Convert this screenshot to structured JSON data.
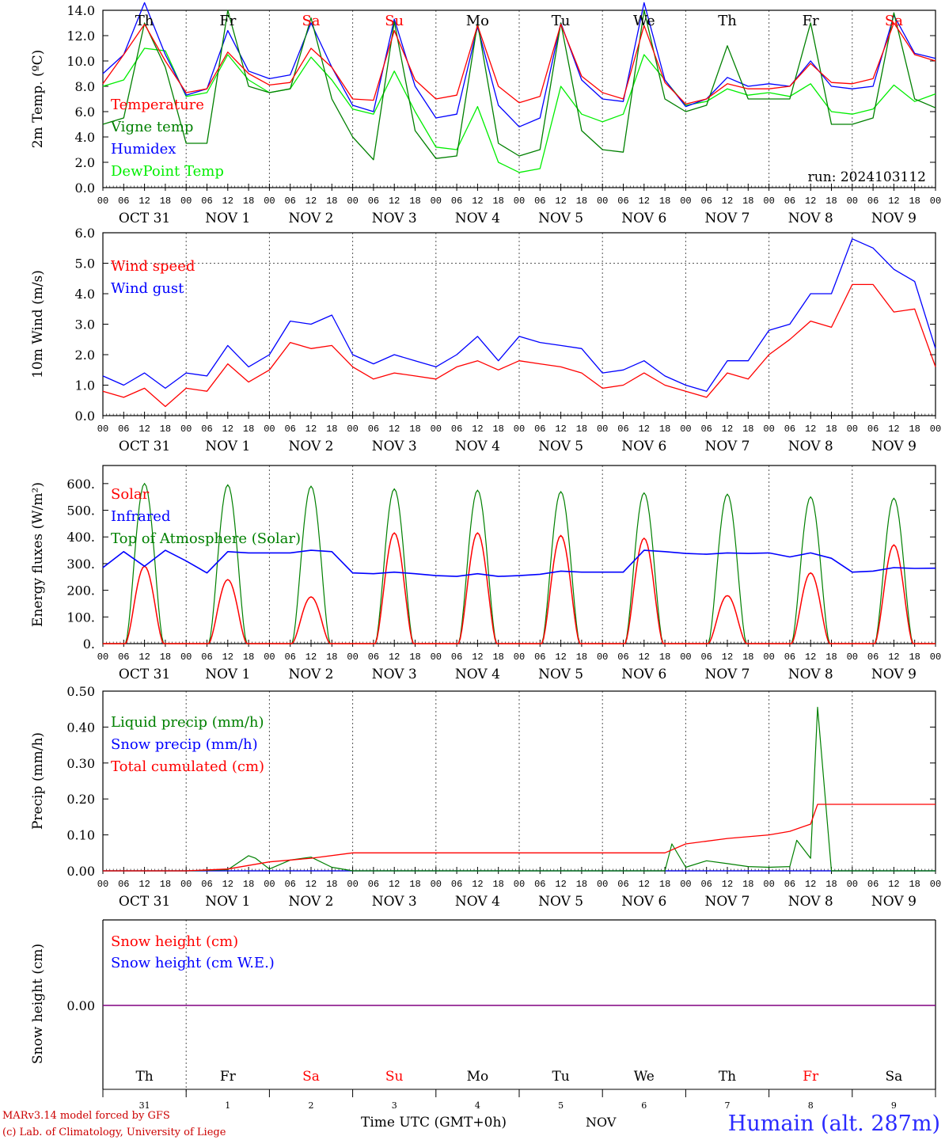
{
  "colors": {
    "red": "#ff0000",
    "green": "#008000",
    "lime": "#00ee00",
    "blue": "#0000ff",
    "purple": "#800080",
    "axis": "#000000",
    "grid": "#555555",
    "station": "#2a2aff",
    "credit": "#cc0000"
  },
  "days": {
    "weekday_labels": [
      "Th",
      "Fr",
      "Sa",
      "Su",
      "Mo",
      "Tu",
      "We",
      "Th",
      "Fr",
      "Sa"
    ],
    "weekend_flags": [
      false,
      false,
      true,
      true,
      false,
      false,
      false,
      false,
      true,
      false
    ],
    "top_weekend_flags": [
      false,
      false,
      true,
      true,
      false,
      false,
      false,
      false,
      false,
      true
    ],
    "month_labels": [
      "OCT 31",
      "NOV 1",
      "NOV 2",
      "NOV 3",
      "NOV 4",
      "NOV 5",
      "NOV 6",
      "NOV 7",
      "NOV 8",
      "NOV 9"
    ],
    "day_numbers": [
      "31",
      "1",
      "2",
      "3",
      "4",
      "5",
      "6",
      "7",
      "8",
      "9"
    ],
    "hour_ticks": [
      "00",
      "06",
      "12",
      "18"
    ],
    "hour_end": "00"
  },
  "footer": {
    "credit_line1": "MARv3.14 model forced by GFS",
    "credit_line2": "(c) Lab. of Climatology, University of Liege",
    "time_axis": "Time UTC (GMT+0h)",
    "month": "NOV",
    "station": "Humain (alt. 287m)"
  },
  "chart_data": [
    {
      "type": "line",
      "ylabel": "2m Temp. (ºC)",
      "ylim": [
        0,
        14
      ],
      "yticks": [
        "0.0",
        "2.0",
        "4.0",
        "6.0",
        "8.0",
        "10.0",
        "12.0",
        "14.0"
      ],
      "grid": "vertical dotted lines at 00 UTC",
      "run_label": "run: 2024103112",
      "x_start": "2024-10-31 00:00 UTC",
      "x_end": "2024-11-10 00:00 UTC",
      "series": [
        {
          "name": "Temperature",
          "color": "red",
          "x": [
            0,
            6,
            12,
            18,
            24,
            30,
            36,
            42,
            48,
            54,
            60,
            66,
            72,
            78,
            84,
            90,
            96,
            102,
            108,
            114,
            120,
            126,
            132,
            138,
            144,
            150,
            156,
            162,
            168,
            174,
            180,
            186,
            192,
            198,
            204,
            210,
            216,
            222,
            228,
            234,
            240
          ],
          "y": [
            8.2,
            10.5,
            12.9,
            10.0,
            7.5,
            7.8,
            10.7,
            9.0,
            8.1,
            8.3,
            11.0,
            9.5,
            7.0,
            6.9,
            12.4,
            8.5,
            7.0,
            7.3,
            12.8,
            8.0,
            6.7,
            7.2,
            12.9,
            8.8,
            7.5,
            7.0,
            12.8,
            8.3,
            6.6,
            7.0,
            8.2,
            7.8,
            7.8,
            8.0,
            9.8,
            8.3,
            8.2,
            8.6,
            13.0,
            10.5,
            10.0
          ]
        },
        {
          "name": "Vigne temp",
          "color": "green",
          "x": [
            0,
            6,
            12,
            18,
            24,
            30,
            36,
            42,
            48,
            54,
            60,
            66,
            72,
            78,
            84,
            90,
            96,
            102,
            108,
            114,
            120,
            126,
            132,
            138,
            144,
            150,
            156,
            162,
            168,
            174,
            180,
            186,
            192,
            198,
            204,
            210,
            216,
            222,
            228,
            234,
            240
          ],
          "y": [
            5.0,
            5.5,
            13.0,
            9.5,
            3.5,
            3.5,
            14.0,
            8.0,
            7.5,
            7.8,
            13.4,
            7.0,
            4.0,
            2.2,
            13.1,
            4.5,
            2.3,
            2.5,
            13.0,
            3.5,
            2.5,
            3.0,
            13.0,
            4.5,
            3.0,
            2.8,
            14.0,
            7.0,
            6.0,
            6.5,
            11.2,
            7.0,
            7.0,
            7.0,
            13.0,
            5.0,
            5.0,
            5.5,
            13.8,
            7.0,
            6.3
          ]
        },
        {
          "name": "Humidex",
          "color": "blue",
          "x": [
            0,
            6,
            12,
            18,
            24,
            30,
            36,
            42,
            48,
            54,
            60,
            66,
            72,
            78,
            84,
            90,
            96,
            102,
            108,
            114,
            120,
            126,
            132,
            138,
            144,
            150,
            156,
            162,
            168,
            174,
            180,
            186,
            192,
            198,
            204,
            210,
            216,
            222,
            228,
            234,
            240
          ],
          "y": [
            9.0,
            10.5,
            14.6,
            10.5,
            7.3,
            7.8,
            12.4,
            9.2,
            8.6,
            8.9,
            13.0,
            9.5,
            6.5,
            6.0,
            13.3,
            8.0,
            5.5,
            5.8,
            12.7,
            6.5,
            4.8,
            5.5,
            13.0,
            8.5,
            7.0,
            6.8,
            14.6,
            8.5,
            6.4,
            7.0,
            8.7,
            8.0,
            8.2,
            8.0,
            10.0,
            8.0,
            7.8,
            8.0,
            13.6,
            10.6,
            10.2
          ]
        },
        {
          "name": "DewPoint Temp",
          "color": "lime",
          "x": [
            0,
            6,
            12,
            18,
            24,
            30,
            36,
            42,
            48,
            54,
            60,
            66,
            72,
            78,
            84,
            90,
            96,
            102,
            108,
            114,
            120,
            126,
            132,
            138,
            144,
            150,
            156,
            162,
            168,
            174,
            180,
            186,
            192,
            198,
            204,
            210,
            216,
            222,
            228,
            234,
            240
          ],
          "y": [
            8.0,
            8.5,
            11.0,
            10.8,
            7.2,
            7.5,
            10.5,
            8.5,
            7.5,
            7.8,
            10.3,
            8.5,
            6.2,
            5.8,
            9.2,
            6.0,
            3.2,
            3.0,
            6.4,
            2.0,
            1.2,
            1.5,
            8.0,
            5.8,
            5.2,
            5.8,
            10.5,
            8.5,
            6.5,
            6.8,
            7.8,
            7.3,
            7.5,
            7.2,
            8.2,
            6.0,
            5.8,
            6.2,
            8.1,
            6.8,
            7.4
          ]
        }
      ]
    },
    {
      "type": "line",
      "ylabel": "10m Wind (m/s)",
      "ylim": [
        0,
        6
      ],
      "yticks": [
        "0.0",
        "1.0",
        "2.0",
        "3.0",
        "4.0",
        "5.0",
        "6.0"
      ],
      "reference_line": 5.0,
      "grid": "vertical dotted lines at 00 UTC",
      "x_start": "2024-10-31 00:00 UTC",
      "x_end": "2024-11-10 00:00 UTC",
      "series": [
        {
          "name": "Wind speed",
          "color": "red",
          "x": [
            0,
            6,
            12,
            18,
            24,
            30,
            36,
            42,
            48,
            54,
            60,
            66,
            72,
            78,
            84,
            90,
            96,
            102,
            108,
            114,
            120,
            126,
            132,
            138,
            144,
            150,
            156,
            162,
            168,
            174,
            180,
            186,
            192,
            198,
            204,
            210,
            216,
            222,
            228,
            234,
            240
          ],
          "y": [
            0.8,
            0.6,
            0.9,
            0.3,
            0.9,
            0.8,
            1.7,
            1.1,
            1.5,
            2.4,
            2.2,
            2.3,
            1.6,
            1.2,
            1.4,
            1.3,
            1.2,
            1.6,
            1.8,
            1.5,
            1.8,
            1.7,
            1.6,
            1.4,
            0.9,
            1.0,
            1.4,
            1.0,
            0.8,
            0.6,
            1.4,
            1.2,
            2.0,
            2.5,
            3.1,
            2.9,
            4.3,
            4.3,
            3.4,
            3.5,
            1.6
          ]
        },
        {
          "name": "Wind gust",
          "color": "blue",
          "x": [
            0,
            6,
            12,
            18,
            24,
            30,
            36,
            42,
            48,
            54,
            60,
            66,
            72,
            78,
            84,
            90,
            96,
            102,
            108,
            114,
            120,
            126,
            132,
            138,
            144,
            150,
            156,
            162,
            168,
            174,
            180,
            186,
            192,
            198,
            204,
            210,
            216,
            222,
            228,
            234,
            240
          ],
          "y": [
            1.3,
            1.0,
            1.4,
            0.9,
            1.4,
            1.3,
            2.3,
            1.6,
            2.0,
            3.1,
            3.0,
            3.3,
            2.0,
            1.7,
            2.0,
            1.8,
            1.6,
            2.0,
            2.6,
            1.8,
            2.6,
            2.4,
            2.3,
            2.2,
            1.4,
            1.5,
            1.8,
            1.3,
            1.0,
            0.8,
            1.8,
            1.8,
            2.8,
            3.0,
            4.0,
            4.0,
            5.8,
            5.5,
            4.8,
            4.4,
            2.2
          ]
        }
      ]
    },
    {
      "type": "line",
      "ylabel": "Energy fluxes (W/m²)",
      "ylim": [
        0,
        650
      ],
      "yticks": [
        "0.",
        "100.",
        "200.",
        "300.",
        "400.",
        "500.",
        "600."
      ],
      "grid": "vertical dotted lines at 00 UTC",
      "x_start": "2024-10-31 00:00 UTC",
      "x_end": "2024-11-10 00:00 UTC",
      "daily_peaks": {
        "Solar": [
          290,
          240,
          175,
          415,
          415,
          405,
          395,
          180,
          265,
          370
        ],
        "Top of Atmosphere (Solar)": [
          600,
          595,
          590,
          580,
          575,
          570,
          565,
          560,
          550,
          545
        ]
      },
      "series": [
        {
          "name": "Solar",
          "color": "red",
          "note": "zero at night, diurnal peak near 12 UTC (peak values in daily_peaks)"
        },
        {
          "name": "Infrared",
          "color": "blue",
          "x": [
            0,
            6,
            12,
            18,
            24,
            30,
            36,
            42,
            48,
            54,
            60,
            66,
            72,
            78,
            84,
            90,
            96,
            102,
            108,
            114,
            120,
            126,
            132,
            138,
            144,
            150,
            156,
            162,
            168,
            174,
            180,
            186,
            192,
            198,
            204,
            210,
            216,
            222,
            228,
            234,
            240
          ],
          "y": [
            285,
            345,
            290,
            350,
            310,
            265,
            345,
            340,
            340,
            340,
            350,
            345,
            265,
            262,
            268,
            262,
            255,
            252,
            262,
            252,
            255,
            260,
            272,
            268,
            268,
            268,
            350,
            345,
            338,
            335,
            340,
            338,
            340,
            325,
            340,
            320,
            268,
            272,
            285,
            282,
            283
          ]
        },
        {
          "name": "Top of Atmosphere (Solar)",
          "color": "green",
          "note": "zero at night, diurnal peak near 12 UTC (peak values in daily_peaks)"
        }
      ]
    },
    {
      "type": "line",
      "ylabel": "Precip (mm/h)",
      "ylim": [
        0,
        0.5
      ],
      "yticks": [
        "0.00",
        "0.10",
        "0.20",
        "0.30",
        "0.40",
        "0.50"
      ],
      "grid": "vertical dotted lines at 00 UTC",
      "x_start": "2024-10-31 00:00 UTC",
      "x_end": "2024-11-10 00:00 UTC",
      "series": [
        {
          "name": "Liquid precip (mm/h)",
          "color": "green",
          "x": [
            0,
            24,
            36,
            42,
            44,
            48,
            54,
            60,
            66,
            72,
            144,
            162,
            164,
            168,
            174,
            180,
            186,
            192,
            198,
            200,
            204,
            206,
            210,
            240
          ],
          "y": [
            0,
            0,
            0.003,
            0.042,
            0.035,
            0.005,
            0.03,
            0.038,
            0.01,
            0,
            0,
            0,
            0.075,
            0.01,
            0.028,
            0.02,
            0.012,
            0.01,
            0.012,
            0.085,
            0.035,
            0.455,
            0,
            0
          ]
        },
        {
          "name": "Snow precip (mm/h)",
          "color": "blue",
          "x": [
            0,
            240
          ],
          "y": [
            0,
            0
          ]
        },
        {
          "name": "Total cumulated (cm)",
          "color": "red",
          "x": [
            0,
            24,
            36,
            48,
            60,
            72,
            144,
            162,
            168,
            180,
            192,
            198,
            204,
            206,
            240
          ],
          "y": [
            0,
            0,
            0.005,
            0.025,
            0.035,
            0.05,
            0.05,
            0.05,
            0.075,
            0.09,
            0.1,
            0.11,
            0.13,
            0.185,
            0.185
          ]
        }
      ]
    },
    {
      "type": "line",
      "ylabel": "Snow height (cm)",
      "yticks": [
        "0.00"
      ],
      "grid": "vertical dotted line at NOV 1 00 UTC",
      "x_start": "2024-10-31 00:00 UTC",
      "x_end": "2024-11-10 00:00 UTC",
      "series": [
        {
          "name": "Snow height (cm)",
          "color": "red",
          "x": [
            0,
            240
          ],
          "y": [
            0,
            0
          ]
        },
        {
          "name": "Snow height (cm W.E.)",
          "color": "blue",
          "x": [
            0,
            240
          ],
          "y": [
            0,
            0
          ]
        }
      ]
    }
  ]
}
